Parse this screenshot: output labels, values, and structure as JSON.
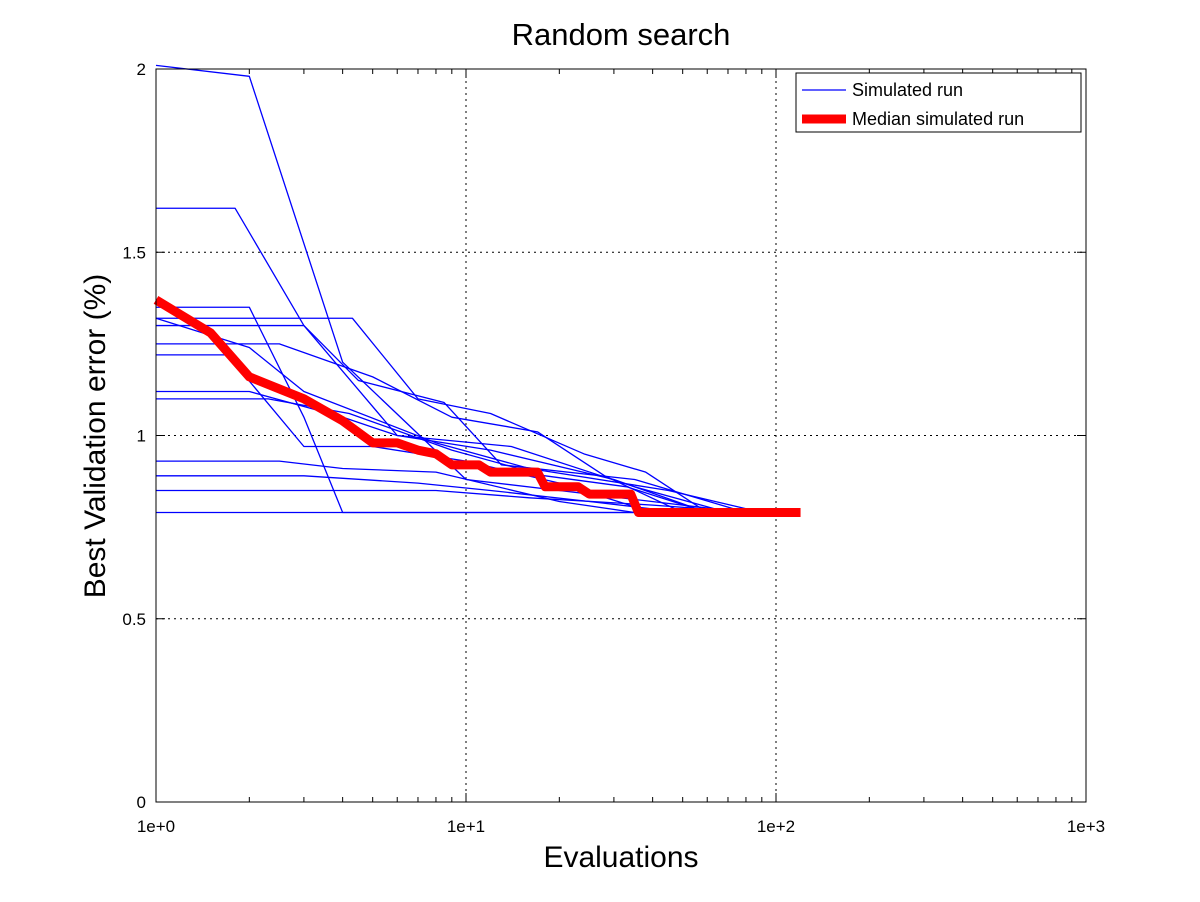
{
  "chart_data": {
    "type": "line",
    "title": "Random search",
    "xlabel": "Evaluations",
    "ylabel": "Best Validation error (%)",
    "xscale": "log",
    "xlim": [
      1,
      1000
    ],
    "ylim": [
      0,
      2
    ],
    "xticks": [
      1,
      10,
      100,
      1000
    ],
    "xtick_labels": [
      "1e+0",
      "1e+1",
      "1e+2",
      "1e+3"
    ],
    "yticks": [
      0,
      0.5,
      1,
      1.5,
      2
    ],
    "ytick_labels": [
      "0",
      "0.5",
      "1",
      "1.5",
      "2"
    ],
    "grid": true,
    "legend_position": "top-right",
    "legend": [
      {
        "label": "Simulated run",
        "color": "#0000ff",
        "style": "thin"
      },
      {
        "label": "Median simulated run",
        "color": "#ff0000",
        "style": "thick"
      }
    ],
    "series": [
      {
        "name": "Simulated run",
        "color": "#0000ff",
        "x": [
          1,
          2,
          4,
          10,
          20,
          50,
          80
        ],
        "y": [
          2.01,
          1.98,
          1.2,
          0.88,
          0.85,
          0.81,
          0.79
        ]
      },
      {
        "x": [
          1,
          1.8,
          3,
          6,
          12,
          30,
          60
        ],
        "y": [
          1.62,
          1.62,
          1.3,
          1.0,
          0.96,
          0.88,
          0.79
        ]
      },
      {
        "x": [
          1,
          2,
          3,
          4,
          9,
          15,
          40
        ],
        "y": [
          1.35,
          1.35,
          1.05,
          0.79,
          0.79,
          0.79,
          0.79
        ]
      },
      {
        "x": [
          1,
          2,
          3,
          8,
          16,
          45,
          90
        ],
        "y": [
          1.32,
          1.24,
          1.12,
          0.98,
          0.91,
          0.85,
          0.79
        ]
      },
      {
        "x": [
          1,
          1.7,
          3,
          5,
          10,
          20,
          40
        ],
        "y": [
          1.22,
          1.22,
          0.97,
          0.97,
          0.93,
          0.87,
          0.79
        ]
      },
      {
        "x": [
          1,
          2,
          4,
          6,
          14,
          35,
          70
        ],
        "y": [
          1.12,
          1.12,
          1.05,
          1.0,
          0.97,
          0.86,
          0.79
        ]
      },
      {
        "x": [
          1,
          2.3,
          4.2,
          9,
          18,
          33,
          60
        ],
        "y": [
          1.1,
          1.1,
          1.06,
          0.96,
          0.89,
          0.86,
          0.79
        ]
      },
      {
        "x": [
          1,
          1.6,
          2.5,
          4,
          8,
          20,
          35
        ],
        "y": [
          0.93,
          0.93,
          0.93,
          0.91,
          0.9,
          0.82,
          0.79
        ]
      },
      {
        "x": [
          1,
          2,
          3,
          7,
          12,
          25,
          50
        ],
        "y": [
          0.89,
          0.89,
          0.89,
          0.87,
          0.85,
          0.82,
          0.79
        ]
      },
      {
        "x": [
          1,
          3,
          5,
          8,
          16,
          40,
          85
        ],
        "y": [
          0.85,
          0.85,
          0.85,
          0.85,
          0.83,
          0.81,
          0.79
        ]
      },
      {
        "x": [
          1,
          4.3,
          7,
          12,
          24,
          38,
          60
        ],
        "y": [
          1.32,
          1.32,
          1.1,
          1.06,
          0.95,
          0.9,
          0.79
        ]
      },
      {
        "x": [
          1,
          2.5,
          5,
          9,
          17,
          28,
          50
        ],
        "y": [
          1.25,
          1.25,
          1.16,
          1.05,
          1.01,
          0.89,
          0.79
        ]
      },
      {
        "x": [
          1,
          3,
          4.5,
          8.5,
          13,
          35,
          80
        ],
        "y": [
          1.3,
          1.3,
          1.15,
          1.09,
          0.92,
          0.88,
          0.79
        ]
      },
      {
        "x": [
          1,
          2,
          3.5,
          5.5,
          10,
          22,
          45
        ],
        "y": [
          0.79,
          0.79,
          0.79,
          0.79,
          0.79,
          0.79,
          0.79
        ]
      },
      {
        "name": "Median simulated run",
        "color": "#ff0000",
        "x": [
          1,
          1.5,
          2,
          3,
          4,
          5,
          6,
          7,
          8,
          9,
          11,
          12,
          15,
          17,
          18,
          23,
          25,
          34,
          36,
          120
        ],
        "y": [
          1.37,
          1.28,
          1.16,
          1.1,
          1.04,
          0.98,
          0.98,
          0.96,
          0.95,
          0.92,
          0.92,
          0.9,
          0.9,
          0.9,
          0.86,
          0.86,
          0.84,
          0.84,
          0.79,
          0.79
        ]
      }
    ]
  }
}
